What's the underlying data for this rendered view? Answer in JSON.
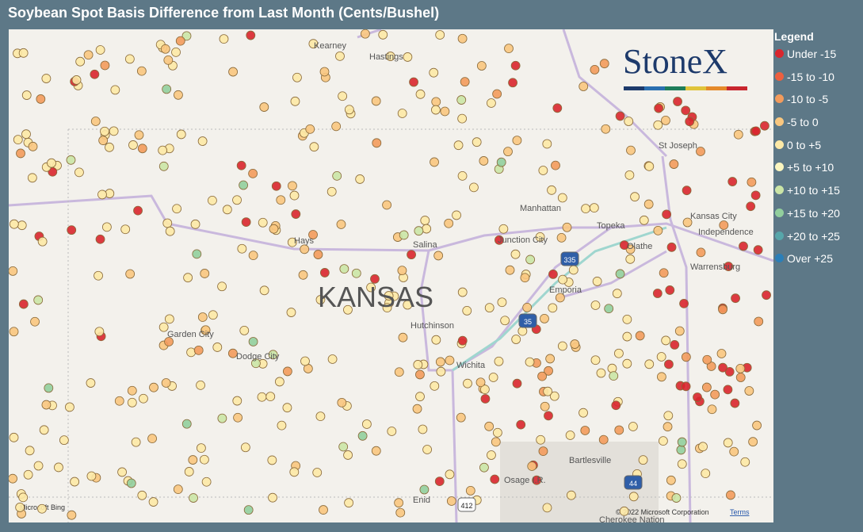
{
  "title": "Soybean Spot Basis Difference from Last Month (Cents/Bushel)",
  "legend": {
    "title": "Legend",
    "items": [
      {
        "name": "Under -15",
        "color": "#d9262e"
      },
      {
        "name": "-15 to -10",
        "color": "#ec5f3f"
      },
      {
        "name": "-10 to -5",
        "color": "#f39b5c"
      },
      {
        "name": "-5 to 0",
        "color": "#f9c77f"
      },
      {
        "name": "0 to +5",
        "color": "#fde9a6"
      },
      {
        "name": "+5 to +10",
        "color": "#fbf6bf"
      },
      {
        "name": "+10 to +15",
        "color": "#cbe5a6"
      },
      {
        "name": "+15 to +20",
        "color": "#92cf9d"
      },
      {
        "name": "+20 to +25",
        "color": "#57a6aa"
      },
      {
        "name": "Over +25",
        "color": "#2b7fb8"
      }
    ]
  },
  "logo": "StoneX",
  "places": [
    "Kearney",
    "Hastings",
    "St Joseph",
    "Manhattan",
    "Topeka",
    "Kansas City",
    "Independence",
    "Olathe",
    "Warrensburg",
    "Hays",
    "Salina",
    "Junction City",
    "Emporia",
    "KANSAS",
    "Hutchinson",
    "Garden City",
    "Dodge City",
    "Wichita",
    "Bartlesville",
    "Osage I.R.",
    "Enid",
    "Cherokee Nation"
  ],
  "shields": [
    "335",
    "35",
    "412",
    "44"
  ],
  "attribution": {
    "provider": "Microsoft Bing",
    "copyright": "© 2022 Microsoft Corporation",
    "terms": "Terms"
  }
}
